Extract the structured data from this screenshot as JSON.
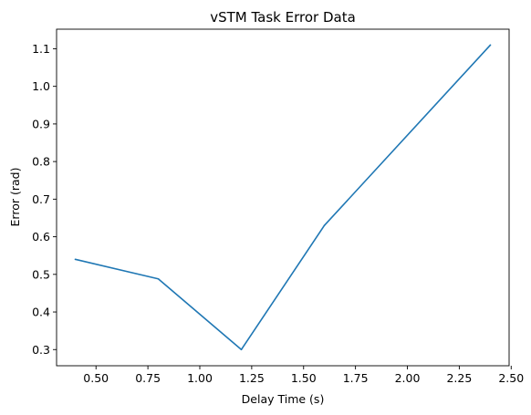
{
  "chart_data": {
    "type": "line",
    "title": "vSTM Task Error Data",
    "xlabel": "Delay Time (s)",
    "ylabel": "Error (rad)",
    "xlim": [
      0.31,
      2.49
    ],
    "ylim": [
      0.257,
      1.152
    ],
    "xticks": [
      0.5,
      0.75,
      1.0,
      1.25,
      1.5,
      1.75,
      2.0,
      2.25,
      2.5
    ],
    "xtick_labels": [
      "0.50",
      "0.75",
      "1.00",
      "1.25",
      "1.50",
      "1.75",
      "2.00",
      "2.25",
      "2.50"
    ],
    "yticks": [
      0.3,
      0.4,
      0.5,
      0.6,
      0.7,
      0.8,
      0.9,
      1.0,
      1.1
    ],
    "ytick_labels": [
      "0.3",
      "0.4",
      "0.5",
      "0.6",
      "0.7",
      "0.8",
      "0.9",
      "1.0",
      "1.1"
    ],
    "grid": false,
    "series": [
      {
        "color": "#1f77b4",
        "x": [
          0.4,
          0.8,
          1.2,
          1.6,
          2.4
        ],
        "y": [
          0.54,
          0.488,
          0.3,
          0.63,
          1.11
        ]
      }
    ]
  }
}
